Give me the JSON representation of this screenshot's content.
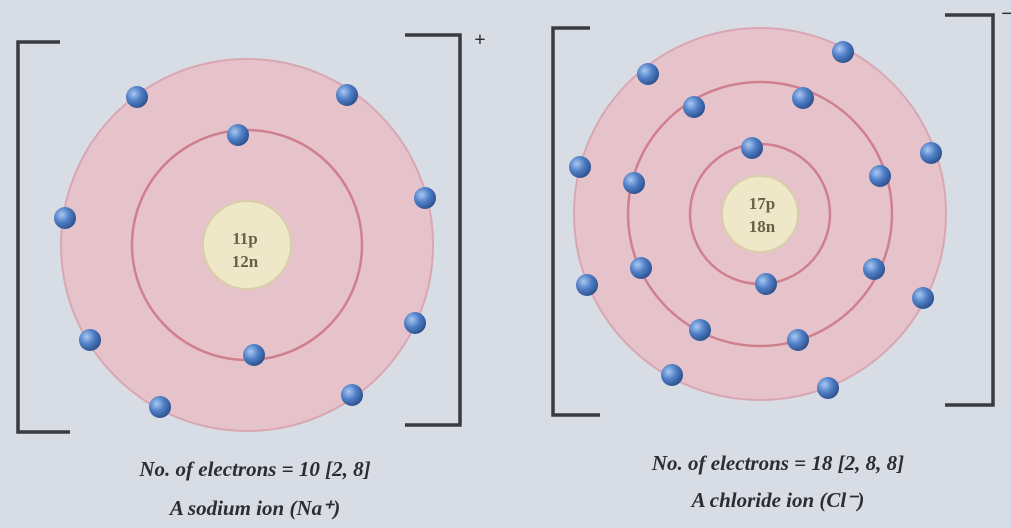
{
  "atoms": [
    {
      "nucleus": [
        "11p",
        "12n"
      ],
      "caption": [
        "No. of electrons = 10 [2, 8]",
        "A sodium ion (Na⁺)"
      ],
      "charge": "+"
    },
    {
      "nucleus": [
        "17p",
        "18n"
      ],
      "caption": [
        "No. of electrons = 18 [2, 8, 8]",
        "A chloride ion (Cl⁻)"
      ],
      "charge": "−"
    }
  ]
}
